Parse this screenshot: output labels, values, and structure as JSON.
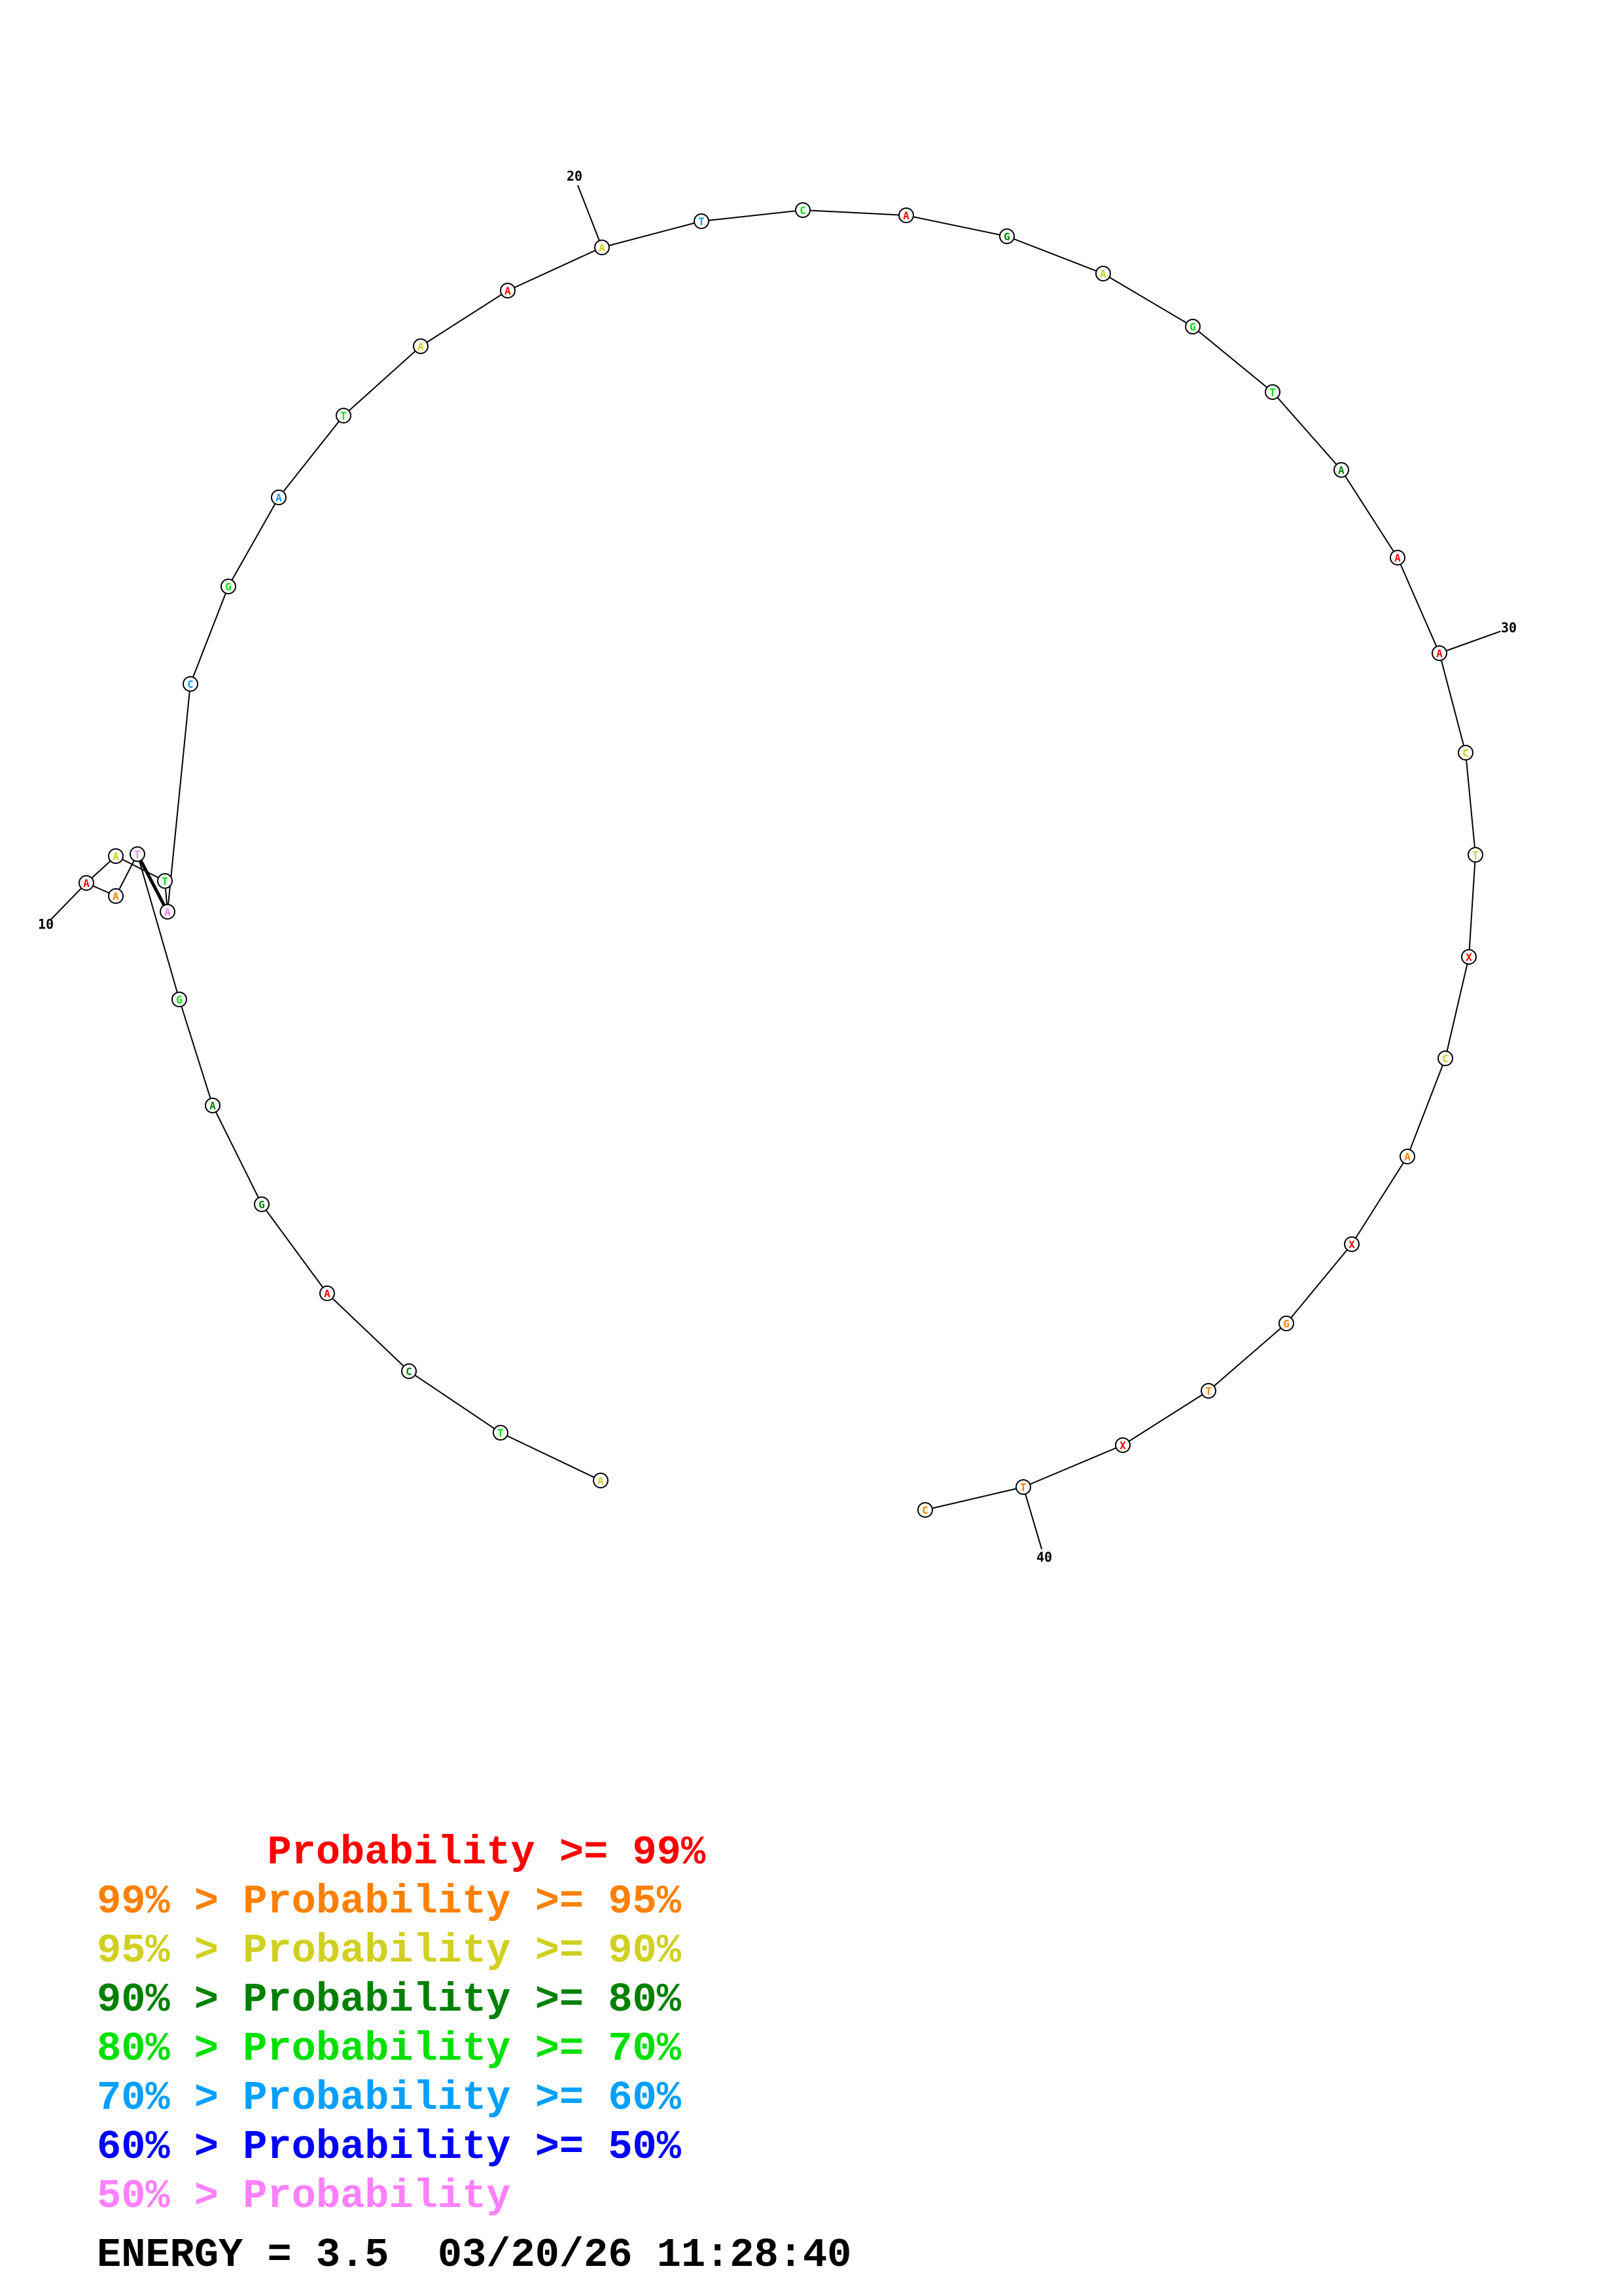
{
  "diagram": {
    "nucleotides": [
      {
        "n": 1,
        "base": "A",
        "band": 2
      },
      {
        "n": 2,
        "base": "T",
        "band": 4
      },
      {
        "n": 3,
        "base": "C",
        "band": 3
      },
      {
        "n": 4,
        "base": "A",
        "band": 0
      },
      {
        "n": 5,
        "base": "G",
        "band": 3
      },
      {
        "n": 6,
        "base": "A",
        "band": 3
      },
      {
        "n": 7,
        "base": "G",
        "band": 4
      },
      {
        "n": 8,
        "base": "T",
        "band": 7
      },
      {
        "n": 9,
        "base": "A",
        "band": 1
      },
      {
        "n": 10,
        "base": "A",
        "band": 0
      },
      {
        "n": 11,
        "base": "A",
        "band": 2
      },
      {
        "n": 12,
        "base": "T",
        "band": 4
      },
      {
        "n": 13,
        "base": "A",
        "band": 7
      },
      {
        "n": 14,
        "base": "C",
        "band": 5
      },
      {
        "n": 15,
        "base": "G",
        "band": 4
      },
      {
        "n": 16,
        "base": "A",
        "band": 5
      },
      {
        "n": 17,
        "base": "T",
        "band": 4
      },
      {
        "n": 18,
        "base": "A",
        "band": 2
      },
      {
        "n": 19,
        "base": "A",
        "band": 0
      },
      {
        "n": 20,
        "base": "A",
        "band": 2
      },
      {
        "n": 21,
        "base": "T",
        "band": 5
      },
      {
        "n": 22,
        "base": "C",
        "band": 4
      },
      {
        "n": 23,
        "base": "A",
        "band": 0
      },
      {
        "n": 24,
        "base": "G",
        "band": 3
      },
      {
        "n": 25,
        "base": "A",
        "band": 2
      },
      {
        "n": 26,
        "base": "G",
        "band": 4
      },
      {
        "n": 27,
        "base": "T",
        "band": 4
      },
      {
        "n": 28,
        "base": "A",
        "band": 3
      },
      {
        "n": 29,
        "base": "A",
        "band": 0
      },
      {
        "n": 30,
        "base": "A",
        "band": 0
      },
      {
        "n": 31,
        "base": "C",
        "band": 2
      },
      {
        "n": 32,
        "base": "T",
        "band": 2
      },
      {
        "n": 33,
        "base": "X",
        "band": 0
      },
      {
        "n": 34,
        "base": "C",
        "band": 2
      },
      {
        "n": 35,
        "base": "A",
        "band": 1
      },
      {
        "n": 36,
        "base": "X",
        "band": 0
      },
      {
        "n": 37,
        "base": "G",
        "band": 1
      },
      {
        "n": 38,
        "base": "T",
        "band": 1
      },
      {
        "n": 39,
        "base": "X",
        "band": 0
      },
      {
        "n": 40,
        "base": "T",
        "band": 1
      },
      {
        "n": 41,
        "base": "C",
        "band": 1
      }
    ],
    "base_pairs": [
      [
        8,
        13
      ]
    ],
    "tick_labels": [
      {
        "n": 10,
        "text": "10"
      },
      {
        "n": 20,
        "text": "20"
      },
      {
        "n": 30,
        "text": "30"
      },
      {
        "n": 40,
        "text": "40"
      }
    ]
  },
  "legend": {
    "colors": [
      "#ff0000",
      "#ff8000",
      "#d0d020",
      "#008000",
      "#00e000",
      "#00a0ff",
      "#0000ff",
      "#ff80ff"
    ],
    "lines": [
      "       Probability >= 99%",
      "99% > Probability >= 95%",
      "95% > Probability >= 90%",
      "90% > Probability >= 80%",
      "80% > Probability >= 70%",
      "70% > Probability >= 60%",
      "60% > Probability >= 50%",
      "50% > Probability"
    ]
  },
  "footer": {
    "energy_text": "ENERGY = 3.5  03/20/26 11:28:40"
  }
}
